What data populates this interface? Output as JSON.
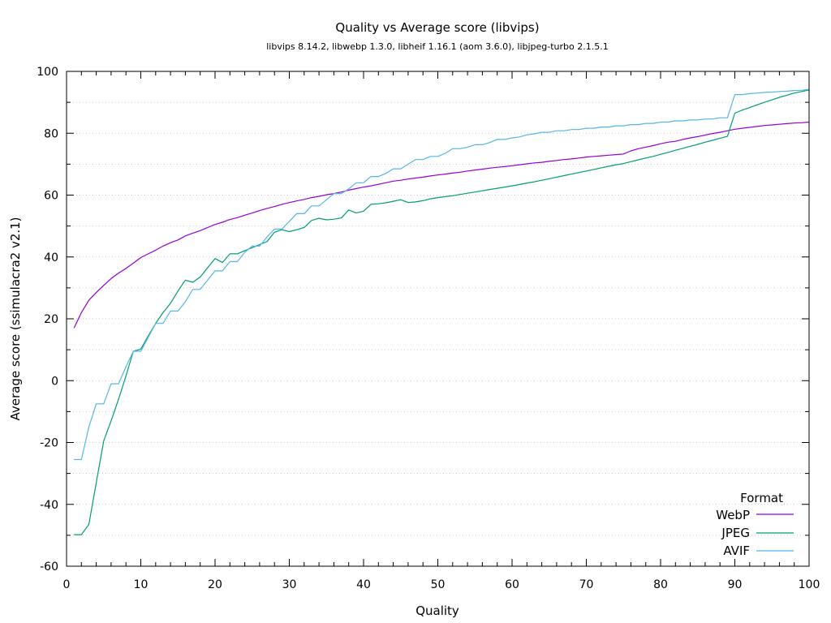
{
  "chart_data": {
    "type": "line",
    "title": "Quality vs Average score (libvips)",
    "subtitle": "libvips 8.14.2, libwebp 1.3.0, libheif 1.16.1 (aom 3.6.0), libjpeg-turbo 2.1.5.1",
    "xlabel": "Quality",
    "ylabel": "Average score (ssimulacra2 v2.1)",
    "xlim": [
      0,
      100
    ],
    "ylim": [
      -60,
      100
    ],
    "xticks": [
      0,
      10,
      20,
      30,
      40,
      50,
      60,
      70,
      80,
      90,
      100
    ],
    "yticks": [
      -60,
      -40,
      -20,
      0,
      20,
      40,
      60,
      80,
      100
    ],
    "grid": "horizontal dotted",
    "legend": {
      "title": "Format",
      "placement": "bottom-right"
    },
    "series": [
      {
        "name": "WebP",
        "color": "#9400d3",
        "points": [
          [
            1,
            17
          ],
          [
            2,
            22
          ],
          [
            3,
            26
          ],
          [
            4,
            28.5
          ],
          [
            5,
            30.8
          ],
          [
            6,
            33
          ],
          [
            7,
            34.8
          ],
          [
            8,
            36.3
          ],
          [
            9,
            38
          ],
          [
            10,
            39.8
          ],
          [
            11,
            41
          ],
          [
            12,
            42.2
          ],
          [
            13,
            43.5
          ],
          [
            14,
            44.6
          ],
          [
            15,
            45.5
          ],
          [
            16,
            46.8
          ],
          [
            17,
            47.7
          ],
          [
            18,
            48.5
          ],
          [
            19,
            49.5
          ],
          [
            20,
            50.5
          ],
          [
            21,
            51.2
          ],
          [
            22,
            52.1
          ],
          [
            23,
            52.7
          ],
          [
            24,
            53.5
          ],
          [
            25,
            54.2
          ],
          [
            26,
            55
          ],
          [
            27,
            55.7
          ],
          [
            28,
            56.3
          ],
          [
            29,
            57
          ],
          [
            30,
            57.6
          ],
          [
            31,
            58.1
          ],
          [
            32,
            58.6
          ],
          [
            33,
            59.2
          ],
          [
            34,
            59.6
          ],
          [
            35,
            60.1
          ],
          [
            36,
            60.5
          ],
          [
            37,
            61
          ],
          [
            38,
            61.6
          ],
          [
            39,
            62.1
          ],
          [
            40,
            62.6
          ],
          [
            41,
            63
          ],
          [
            42,
            63.5
          ],
          [
            43,
            64
          ],
          [
            44,
            64.5
          ],
          [
            45,
            64.8
          ],
          [
            46,
            65.2
          ],
          [
            47,
            65.5
          ],
          [
            48,
            65.8
          ],
          [
            49,
            66.2
          ],
          [
            50,
            66.5
          ],
          [
            51,
            66.8
          ],
          [
            52,
            67.1
          ],
          [
            53,
            67.4
          ],
          [
            54,
            67.8
          ],
          [
            55,
            68.1
          ],
          [
            56,
            68.4
          ],
          [
            57,
            68.7
          ],
          [
            58,
            69
          ],
          [
            59,
            69.2
          ],
          [
            60,
            69.5
          ],
          [
            61,
            69.8
          ],
          [
            62,
            70.1
          ],
          [
            63,
            70.4
          ],
          [
            64,
            70.6
          ],
          [
            65,
            70.9
          ],
          [
            66,
            71.2
          ],
          [
            67,
            71.5
          ],
          [
            68,
            71.7
          ],
          [
            69,
            72
          ],
          [
            70,
            72.3
          ],
          [
            71,
            72.5
          ],
          [
            72,
            72.7
          ],
          [
            73,
            72.9
          ],
          [
            74,
            73.1
          ],
          [
            75,
            73.3
          ],
          [
            76,
            74.3
          ],
          [
            77,
            75
          ],
          [
            78,
            75.5
          ],
          [
            79,
            76
          ],
          [
            80,
            76.6
          ],
          [
            81,
            77.1
          ],
          [
            82,
            77.4
          ],
          [
            83,
            78
          ],
          [
            84,
            78.5
          ],
          [
            85,
            78.9
          ],
          [
            86,
            79.4
          ],
          [
            87,
            79.9
          ],
          [
            88,
            80.3
          ],
          [
            89,
            80.8
          ],
          [
            90,
            81.3
          ],
          [
            91,
            81.6
          ],
          [
            92,
            81.9
          ],
          [
            93,
            82.2
          ],
          [
            94,
            82.5
          ],
          [
            95,
            82.7
          ],
          [
            96,
            82.9
          ],
          [
            97,
            83.1
          ],
          [
            98,
            83.3
          ],
          [
            99,
            83.4
          ],
          [
            100,
            83.6
          ]
        ]
      },
      {
        "name": "JPEG",
        "color": "#009e73",
        "points": [
          [
            1,
            -49.8
          ],
          [
            2,
            -49.8
          ],
          [
            3,
            -46.5
          ],
          [
            4,
            -33
          ],
          [
            5,
            -19.5
          ],
          [
            6,
            -13
          ],
          [
            7,
            -6
          ],
          [
            8,
            1.5
          ],
          [
            9,
            9.5
          ],
          [
            10,
            10.2
          ],
          [
            11,
            14.5
          ],
          [
            12,
            18.5
          ],
          [
            13,
            22
          ],
          [
            14,
            25
          ],
          [
            15,
            29
          ],
          [
            16,
            32.5
          ],
          [
            17,
            31.8
          ],
          [
            18,
            33.5
          ],
          [
            19,
            36.5
          ],
          [
            20,
            39.5
          ],
          [
            21,
            38.2
          ],
          [
            22,
            41
          ],
          [
            23,
            41
          ],
          [
            24,
            42
          ],
          [
            25,
            43
          ],
          [
            26,
            44
          ],
          [
            27,
            45
          ],
          [
            28,
            48
          ],
          [
            29,
            48.8
          ],
          [
            30,
            48.2
          ],
          [
            31,
            48.8
          ],
          [
            32,
            49.5
          ],
          [
            33,
            51.8
          ],
          [
            34,
            52.5
          ],
          [
            35,
            52
          ],
          [
            36,
            52.2
          ],
          [
            37,
            52.6
          ],
          [
            38,
            55.2
          ],
          [
            39,
            54.2
          ],
          [
            40,
            54.8
          ],
          [
            41,
            57
          ],
          [
            42,
            57.2
          ],
          [
            43,
            57.5
          ],
          [
            44,
            58
          ],
          [
            45,
            58.5
          ],
          [
            46,
            57.6
          ],
          [
            47,
            57.8
          ],
          [
            48,
            58.2
          ],
          [
            49,
            58.8
          ],
          [
            50,
            59.2
          ],
          [
            51,
            59.5
          ],
          [
            52,
            59.8
          ],
          [
            53,
            60.2
          ],
          [
            54,
            60.6
          ],
          [
            55,
            61
          ],
          [
            56,
            61.4
          ],
          [
            57,
            61.8
          ],
          [
            58,
            62.2
          ],
          [
            59,
            62.6
          ],
          [
            60,
            63
          ],
          [
            61,
            63.4
          ],
          [
            62,
            63.9
          ],
          [
            63,
            64.3
          ],
          [
            64,
            64.8
          ],
          [
            65,
            65.3
          ],
          [
            66,
            65.8
          ],
          [
            67,
            66.3
          ],
          [
            68,
            66.8
          ],
          [
            69,
            67.3
          ],
          [
            70,
            67.8
          ],
          [
            71,
            68.3
          ],
          [
            72,
            68.8
          ],
          [
            73,
            69.3
          ],
          [
            74,
            69.8
          ],
          [
            75,
            70.2
          ],
          [
            76,
            70.8
          ],
          [
            77,
            71.4
          ],
          [
            78,
            72
          ],
          [
            79,
            72.5
          ],
          [
            80,
            73.2
          ],
          [
            81,
            73.8
          ],
          [
            82,
            74.5
          ],
          [
            83,
            75.1
          ],
          [
            84,
            75.8
          ],
          [
            85,
            76.4
          ],
          [
            86,
            77.1
          ],
          [
            87,
            77.7
          ],
          [
            88,
            78.4
          ],
          [
            89,
            79
          ],
          [
            90,
            86.5
          ],
          [
            91,
            87.5
          ],
          [
            92,
            88.3
          ],
          [
            93,
            89.2
          ],
          [
            94,
            90
          ],
          [
            95,
            90.8
          ],
          [
            96,
            91.6
          ],
          [
            97,
            92.3
          ],
          [
            98,
            93
          ],
          [
            99,
            93.5
          ],
          [
            100,
            94
          ]
        ]
      },
      {
        "name": "AVIF",
        "color": "#56b4e9",
        "points": [
          [
            1,
            -25.5
          ],
          [
            2,
            -25.5
          ],
          [
            3,
            -15
          ],
          [
            4,
            -7.5
          ],
          [
            5,
            -7.5
          ],
          [
            6,
            -1
          ],
          [
            7,
            -1
          ],
          [
            8,
            4.5
          ],
          [
            9,
            9.5
          ],
          [
            10,
            9.5
          ],
          [
            11,
            14
          ],
          [
            12,
            18.5
          ],
          [
            13,
            18.5
          ],
          [
            14,
            22.5
          ],
          [
            15,
            22.5
          ],
          [
            16,
            25.5
          ],
          [
            17,
            29.5
          ],
          [
            18,
            29.5
          ],
          [
            19,
            32.5
          ],
          [
            20,
            35.5
          ],
          [
            21,
            35.5
          ],
          [
            22,
            38.5
          ],
          [
            23,
            38.5
          ],
          [
            24,
            41.5
          ],
          [
            25,
            43.5
          ],
          [
            26,
            43.5
          ],
          [
            27,
            46.5
          ],
          [
            28,
            49
          ],
          [
            29,
            49
          ],
          [
            30,
            51.5
          ],
          [
            31,
            54
          ],
          [
            32,
            54
          ],
          [
            33,
            56.5
          ],
          [
            34,
            56.5
          ],
          [
            35,
            58.5
          ],
          [
            36,
            60.5
          ],
          [
            37,
            60.5
          ],
          [
            38,
            62
          ],
          [
            39,
            64
          ],
          [
            40,
            64
          ],
          [
            41,
            66
          ],
          [
            42,
            66
          ],
          [
            43,
            67
          ],
          [
            44,
            68.5
          ],
          [
            45,
            68.5
          ],
          [
            46,
            70
          ],
          [
            47,
            71.5
          ],
          [
            48,
            71.5
          ],
          [
            49,
            72.5
          ],
          [
            50,
            72.5
          ],
          [
            51,
            73.5
          ],
          [
            52,
            75
          ],
          [
            53,
            75
          ],
          [
            54,
            75.5
          ],
          [
            55,
            76.3
          ],
          [
            56,
            76.3
          ],
          [
            57,
            77
          ],
          [
            58,
            78
          ],
          [
            59,
            78
          ],
          [
            60,
            78.5
          ],
          [
            61,
            78.8
          ],
          [
            62,
            79.5
          ],
          [
            63,
            79.8
          ],
          [
            64,
            80.3
          ],
          [
            65,
            80.3
          ],
          [
            66,
            80.8
          ],
          [
            67,
            80.8
          ],
          [
            68,
            81.2
          ],
          [
            69,
            81.2
          ],
          [
            70,
            81.6
          ],
          [
            71,
            81.6
          ],
          [
            72,
            82
          ],
          [
            73,
            82
          ],
          [
            74,
            82.4
          ],
          [
            75,
            82.4
          ],
          [
            76,
            82.8
          ],
          [
            77,
            82.8
          ],
          [
            78,
            83.2
          ],
          [
            79,
            83.2
          ],
          [
            80,
            83.6
          ],
          [
            81,
            83.6
          ],
          [
            82,
            84
          ],
          [
            83,
            84
          ],
          [
            84,
            84.3
          ],
          [
            85,
            84.3
          ],
          [
            86,
            84.6
          ],
          [
            87,
            84.6
          ],
          [
            88,
            85
          ],
          [
            89,
            85
          ],
          [
            90,
            92.5
          ],
          [
            91,
            92.5
          ],
          [
            92,
            92.8
          ],
          [
            93,
            93
          ],
          [
            94,
            93.2
          ],
          [
            95,
            93.3
          ],
          [
            96,
            93.5
          ],
          [
            97,
            93.6
          ],
          [
            98,
            93.8
          ],
          [
            99,
            93.9
          ],
          [
            100,
            94.2
          ]
        ]
      }
    ]
  }
}
